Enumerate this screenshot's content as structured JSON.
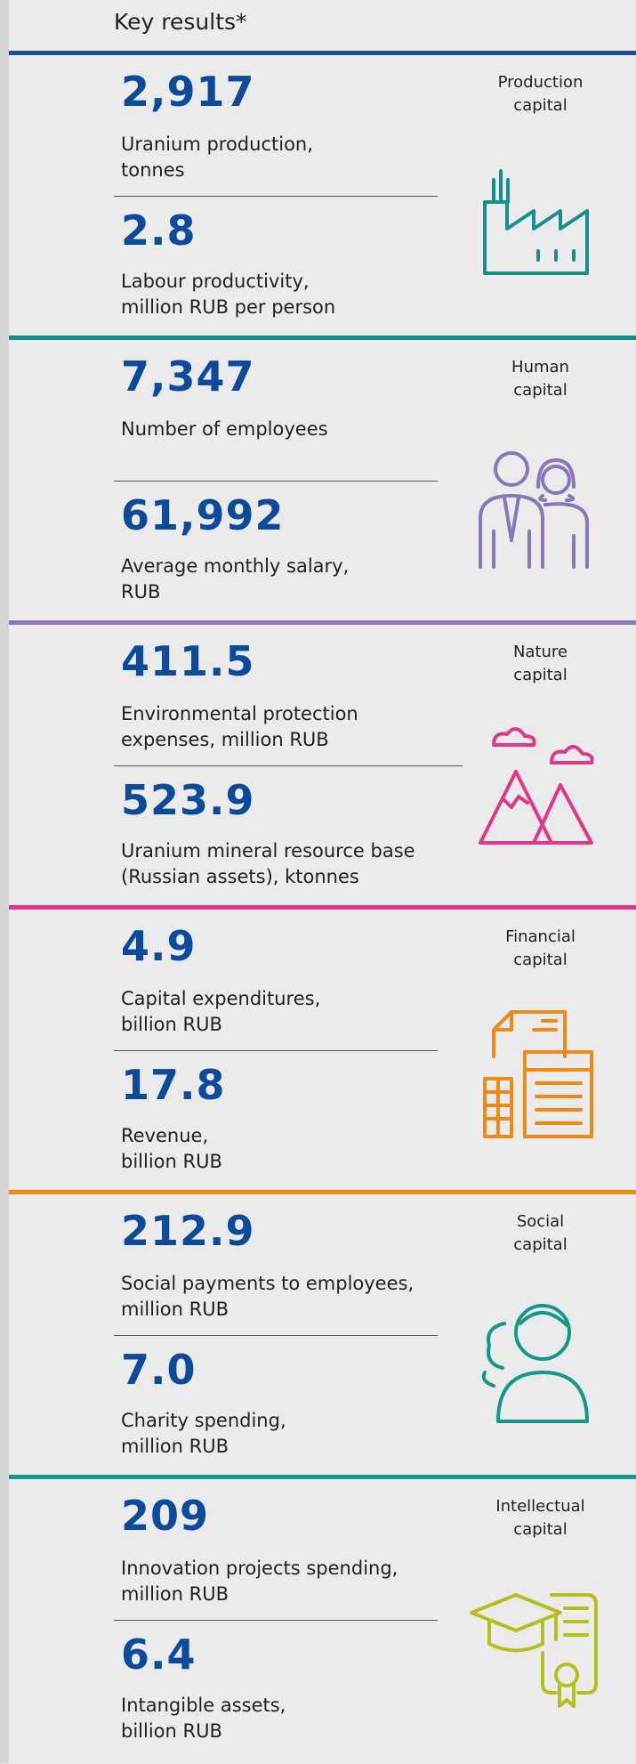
{
  "header": {
    "title": "Key results*"
  },
  "sections": [
    {
      "capital": "Production\ncapital",
      "color": "#14918e",
      "items": [
        {
          "value": "2,917",
          "label": "Uranium production,\ntonnes"
        },
        {
          "value": "2.8",
          "label": "Labour productivity,\nmillion RUB per person"
        }
      ]
    },
    {
      "capital": "Human\ncapital",
      "color": "#8a77b7",
      "items": [
        {
          "value": "7,347",
          "label": "Number of employees"
        },
        {
          "value": "61,992",
          "label": "Average monthly salary,\nRUB"
        }
      ]
    },
    {
      "capital": "Nature\ncapital",
      "color": "#e0378a",
      "items": [
        {
          "value": "411.5",
          "label": "Environmental protection\nexpenses, million RUB"
        },
        {
          "value": "523.9",
          "label": "Uranium mineral resource base\n(Russian assets), ktonnes"
        }
      ]
    },
    {
      "capital": "Financial\ncapital",
      "color": "#ef8a17",
      "items": [
        {
          "value": "4.9",
          "label": "Capital expenditures,\nbillion RUB"
        },
        {
          "value": "17.8",
          "label": "Revenue,\nbillion RUB"
        }
      ]
    },
    {
      "capital": "Social\ncapital",
      "color": "#13998a",
      "items": [
        {
          "value": "212.9",
          "label": "Social payments to employees,\nmillion RUB"
        },
        {
          "value": "7.0",
          "label": "Charity spending,\nmillion RUB"
        }
      ]
    },
    {
      "capital": "Intellectual\ncapital",
      "color": "#b5c01e",
      "items": [
        {
          "value": "209",
          "label": "Innovation projects spending,\nmillion RUB"
        },
        {
          "value": "6.4",
          "label": "Intangible assets,\nbillion RUB"
        }
      ]
    }
  ]
}
